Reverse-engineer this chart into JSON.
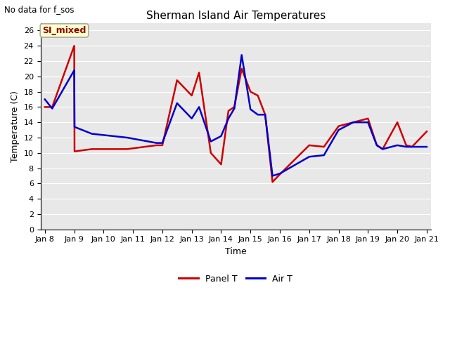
{
  "title": "Sherman Island Air Temperatures",
  "subtitle": "No data for f_sos",
  "xlabel": "Time",
  "ylabel": "Temperature (C)",
  "annotation": "SI_mixed",
  "fig_bg_color": "#ffffff",
  "plot_bg_color": "#e8e8e8",
  "ylim": [
    0,
    27
  ],
  "yticks": [
    0,
    2,
    4,
    6,
    8,
    10,
    12,
    14,
    16,
    18,
    20,
    22,
    24,
    26
  ],
  "x_labels": [
    "Jan 8",
    "Jan 9",
    "Jan 10",
    "Jan 11",
    "Jan 12",
    "Jan 13",
    "Jan 14",
    "Jan 15",
    "Jan 16",
    "Jan 17",
    "Jan 18",
    "Jan 19",
    "Jan 20",
    "Jan 21"
  ],
  "x_values": [
    0,
    1,
    2,
    3,
    4,
    5,
    6,
    7,
    8,
    9,
    10,
    11,
    12,
    13
  ],
  "panel_T_x": [
    0,
    0.25,
    1.0,
    1.01,
    1.6,
    2.8,
    3.8,
    4.0,
    4.5,
    5.0,
    5.25,
    5.65,
    6.0,
    6.25,
    6.45,
    6.7,
    7.0,
    7.25,
    7.5,
    7.75,
    8.0,
    9.0,
    9.5,
    10.0,
    10.5,
    11.0,
    11.3,
    11.5,
    12.0,
    12.3,
    12.5,
    13.0
  ],
  "panel_T_y": [
    16.0,
    16.0,
    24.0,
    10.2,
    10.5,
    10.5,
    11.0,
    11.0,
    19.5,
    17.5,
    20.5,
    10.0,
    8.5,
    15.5,
    16.0,
    21.0,
    18.0,
    17.5,
    15.0,
    6.2,
    7.2,
    11.0,
    10.8,
    13.5,
    14.0,
    14.5,
    11.0,
    10.5,
    14.0,
    11.0,
    10.8,
    12.8
  ],
  "air_T_x": [
    0,
    0.25,
    1.0,
    1.01,
    1.6,
    2.8,
    3.8,
    4.0,
    4.5,
    5.0,
    5.25,
    5.65,
    6.0,
    6.25,
    6.45,
    6.7,
    7.0,
    7.25,
    7.5,
    7.75,
    8.0,
    9.0,
    9.5,
    10.0,
    10.5,
    11.0,
    11.3,
    11.5,
    12.0,
    12.3,
    12.5,
    13.0
  ],
  "air_T_y": [
    17.0,
    15.8,
    20.8,
    13.4,
    12.5,
    12.0,
    11.3,
    11.3,
    16.5,
    14.5,
    16.0,
    11.5,
    12.2,
    14.5,
    15.8,
    22.8,
    15.7,
    15.0,
    15.0,
    7.0,
    7.3,
    9.5,
    9.7,
    13.0,
    14.0,
    14.0,
    11.0,
    10.5,
    11.0,
    10.8,
    10.8,
    10.8
  ],
  "panel_color": "#cc0000",
  "air_color": "#0000cc",
  "line_width": 1.8,
  "legend_panel": "Panel T",
  "legend_air": "Air T",
  "title_fontsize": 11,
  "axis_label_fontsize": 9,
  "tick_fontsize": 8,
  "subtitle_fontsize": 8.5,
  "annot_fontsize": 9
}
